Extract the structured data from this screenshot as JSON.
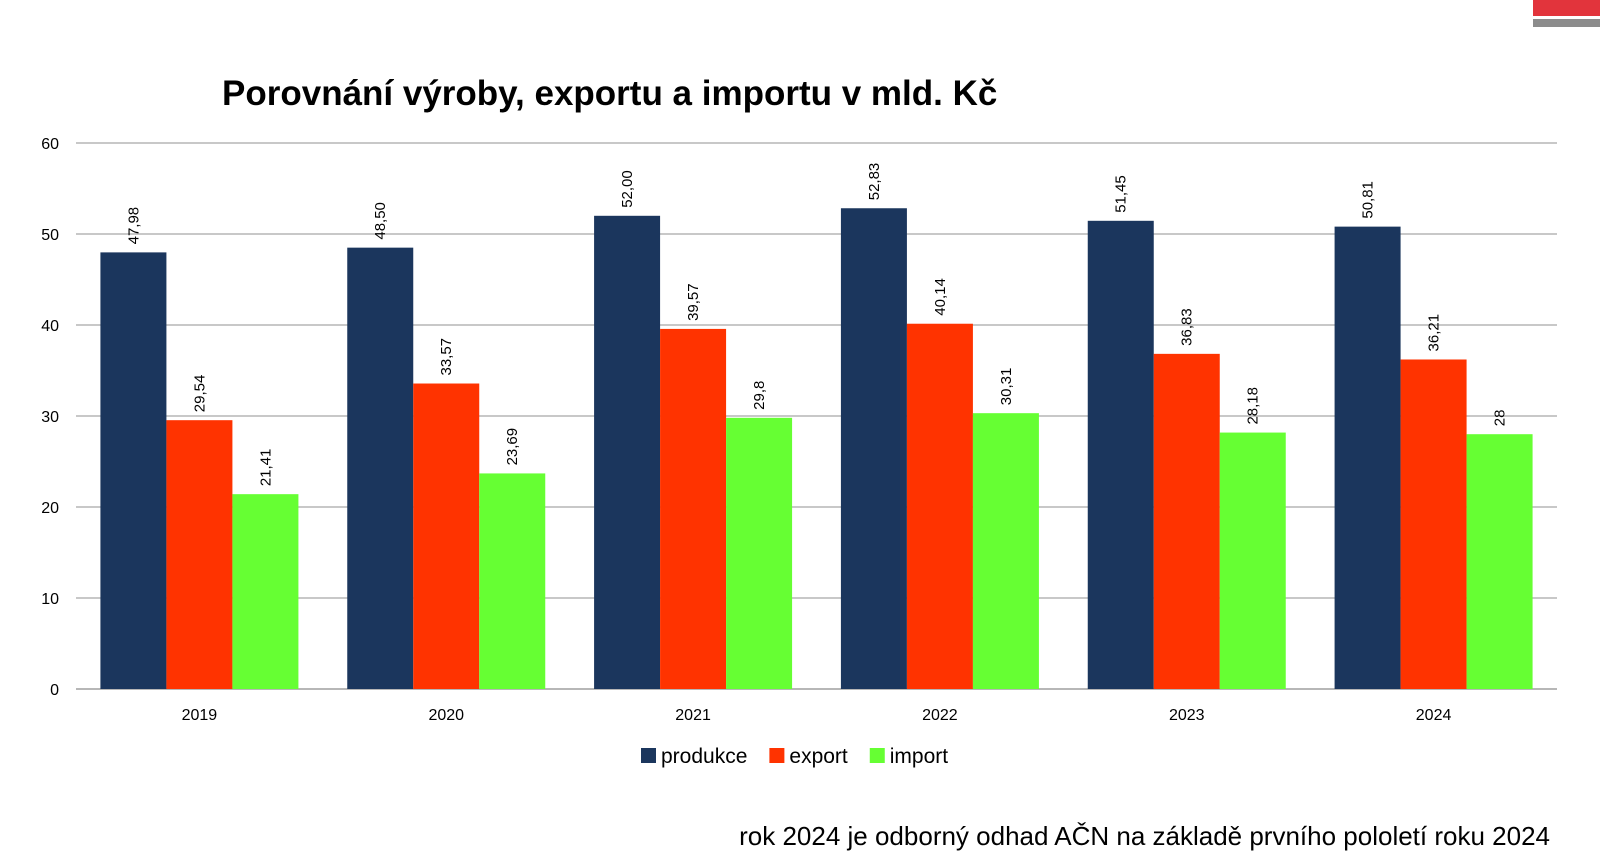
{
  "chart_data": {
    "type": "bar",
    "title": "Porovnání výroby, exportu a importu v mld. Kč",
    "xlabel": "",
    "ylabel": "",
    "categories": [
      "2019",
      "2020",
      "2021",
      "2022",
      "2023",
      "2024"
    ],
    "series": [
      {
        "name": "produkce",
        "color": "#1b365d",
        "values": [
          47.98,
          48.5,
          52.0,
          52.83,
          51.45,
          50.81
        ],
        "labels": [
          "47,98",
          "48,50",
          "52,00",
          "52,83",
          "51,45",
          "50,81"
        ]
      },
      {
        "name": "export",
        "color": "#ff3300",
        "values": [
          29.54,
          33.57,
          39.57,
          40.14,
          36.83,
          36.21
        ],
        "labels": [
          "29,54",
          "33,57",
          "39,57",
          "40,14",
          "36,83",
          "36,21"
        ]
      },
      {
        "name": "import",
        "color": "#66ff33",
        "values": [
          21.41,
          23.69,
          29.8,
          30.31,
          28.18,
          28
        ],
        "labels": [
          "21,41",
          "23,69",
          "29,8",
          "30,31",
          "28,18",
          "28"
        ]
      }
    ],
    "ylim": [
      0,
      60
    ],
    "yticks": [
      0,
      10,
      20,
      30,
      40,
      50,
      60
    ],
    "grid": true,
    "legend_position": "bottom"
  },
  "footnote": "rok 2024 je odborný odhad AČN na základě prvního pololetí roku 2024",
  "colors": {
    "gridline": "#a6a6a6",
    "logo_red": "#e2343c",
    "logo_gray": "#8c8c8c"
  }
}
